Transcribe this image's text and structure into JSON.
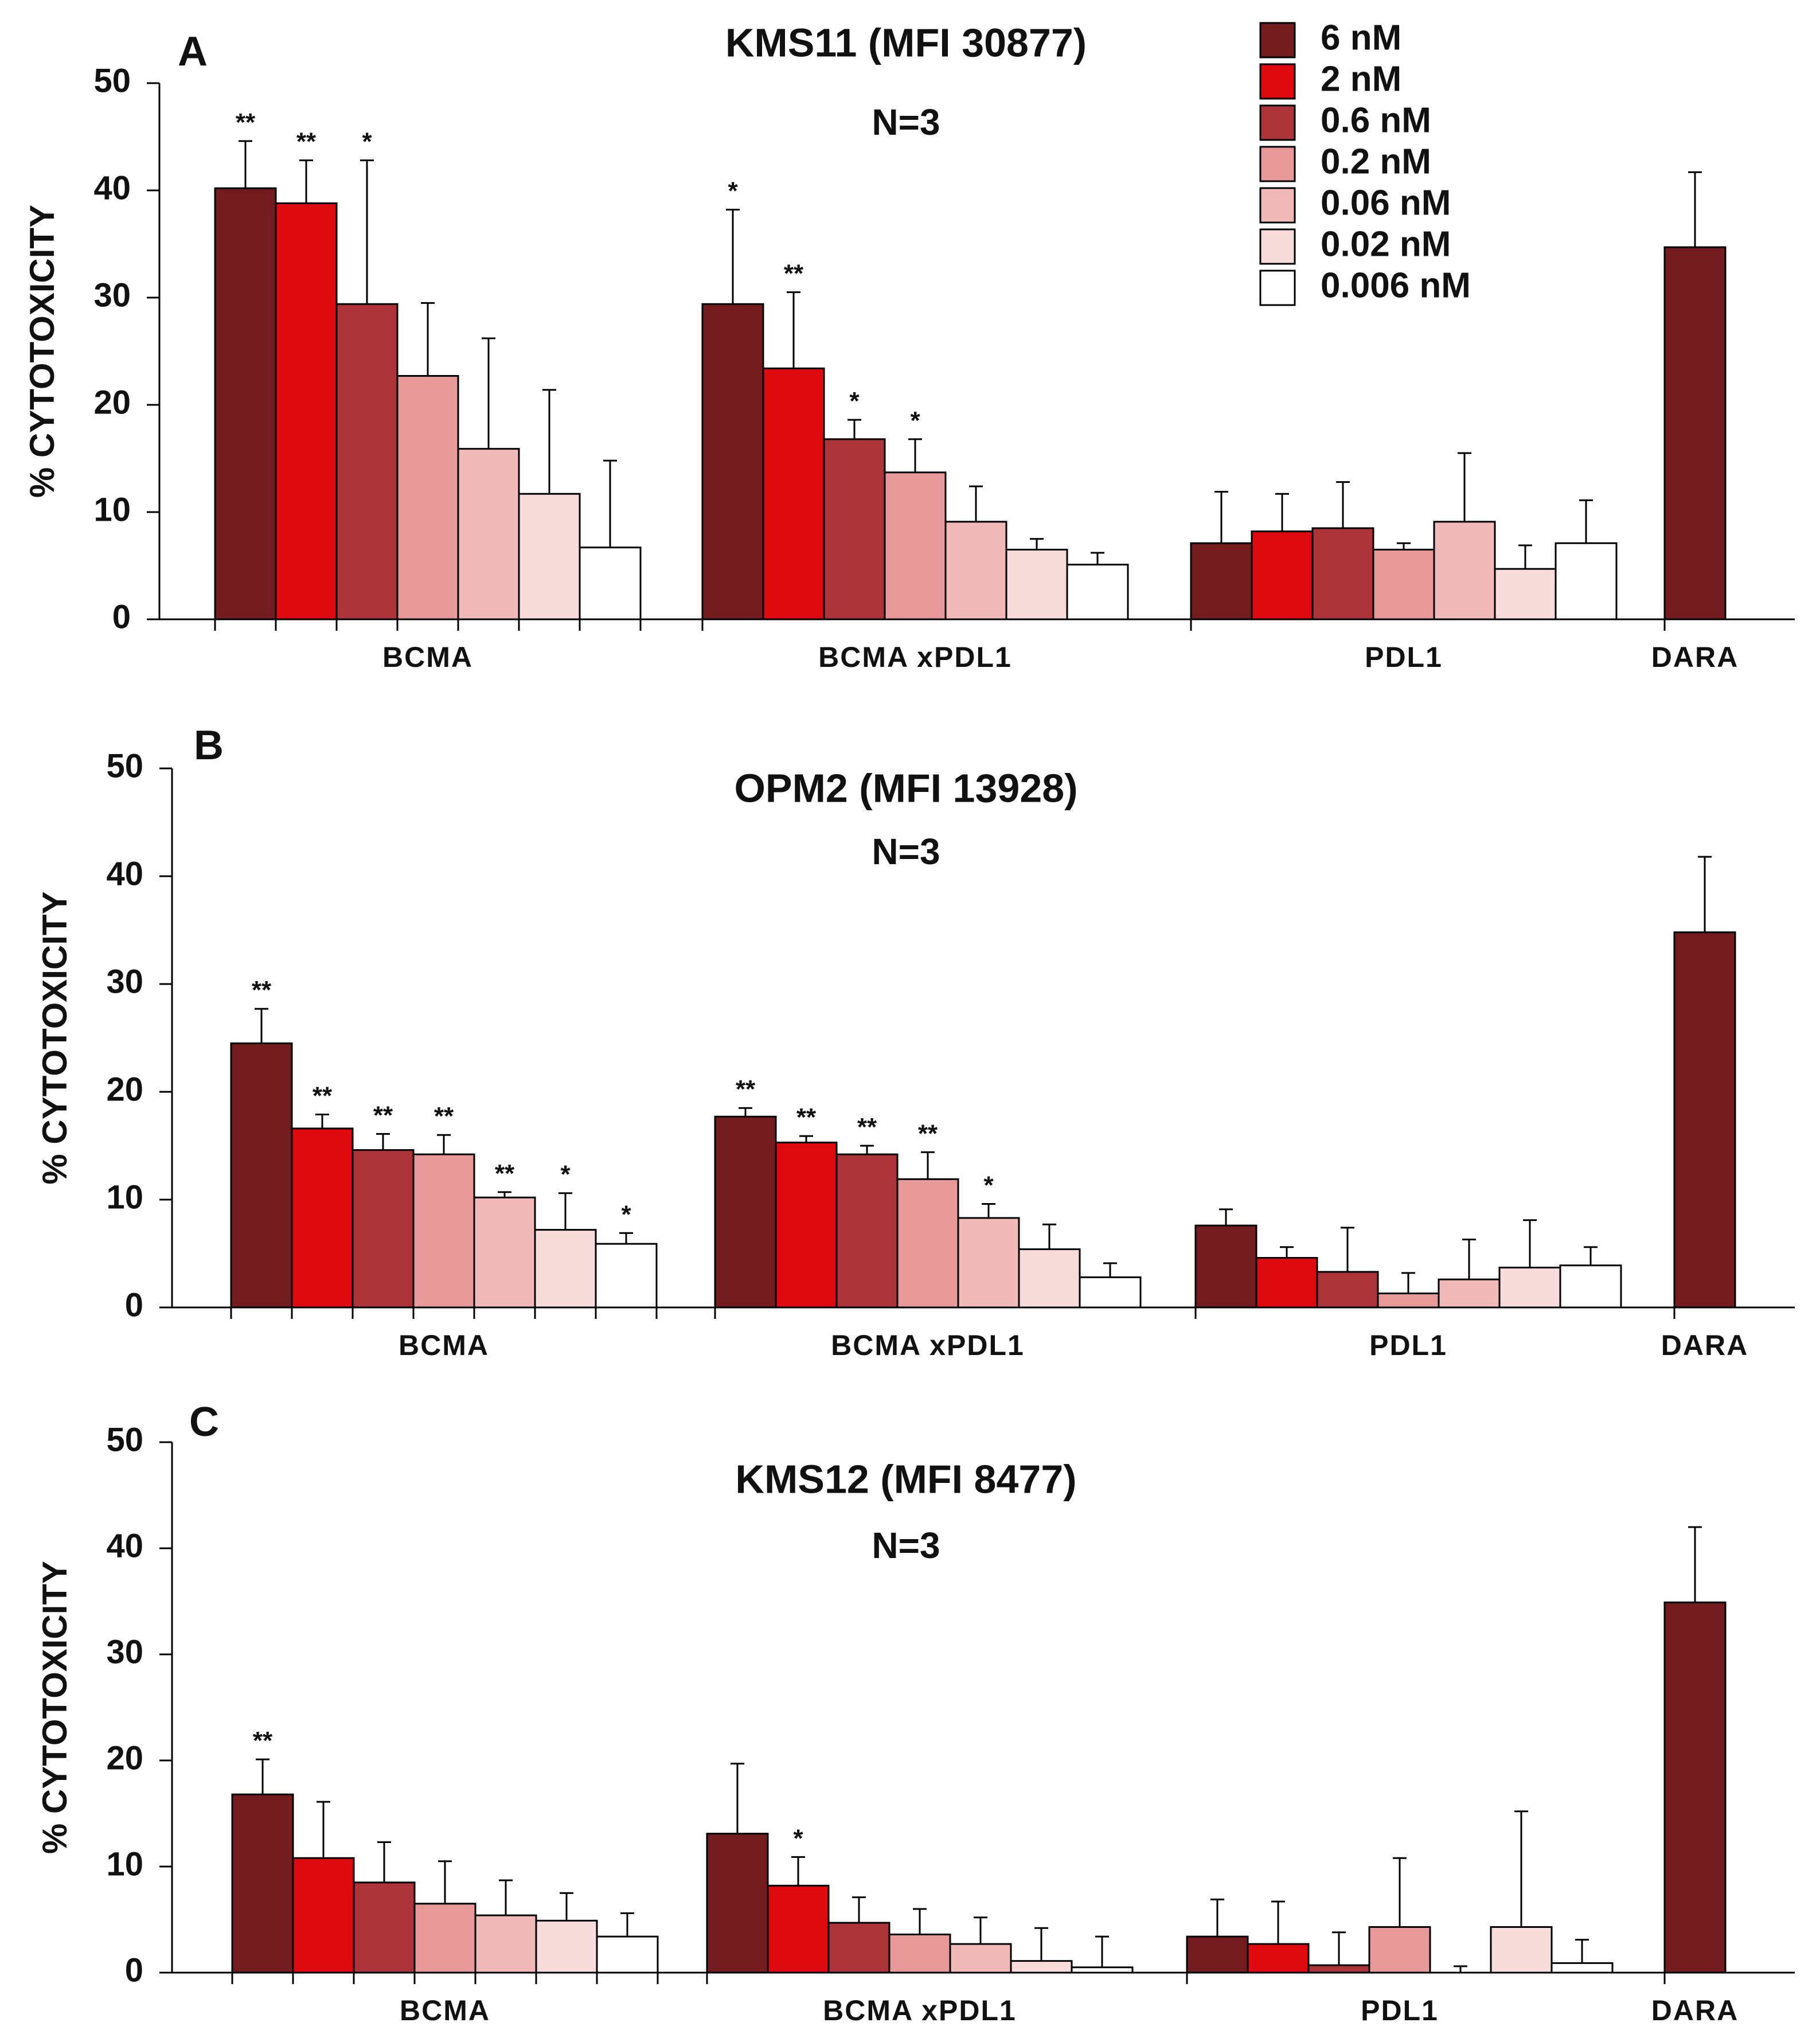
{
  "figure": {
    "legend": {
      "items": [
        {
          "label": "6 nM",
          "color": "#721c1f"
        },
        {
          "label": "2 nM",
          "color": "#df0a10"
        },
        {
          "label": "0.6 nM",
          "color": "#ac3337"
        },
        {
          "label": "0.2 nM",
          "color": "#e89a9b"
        },
        {
          "label": "0.06 nM",
          "color": "#f2b9b9"
        },
        {
          "label": "0.02 nM",
          "color": "#f8dcdc"
        },
        {
          "label": "0.006 nM",
          "color": "#ffffff"
        }
      ]
    }
  },
  "chart_data": [
    {
      "type": "bar",
      "panel": "A",
      "title": "KMS11 (MFI 30877)",
      "subtitle": "N=3",
      "ylabel": "% CYTOTOXICITY",
      "xlabel": "",
      "ylim": [
        0,
        50
      ],
      "yticks": [
        "0",
        "10",
        "20",
        "30",
        "40",
        "50"
      ],
      "categories": [
        "BCMA",
        "BCMA xPDL1",
        "PDL1",
        "DARA"
      ],
      "series": [
        {
          "name": "6 nM",
          "values": [
            40.2,
            29.4,
            7.1,
            34.7
          ],
          "errors": [
            4.4,
            8.8,
            4.8,
            7.0
          ],
          "sig": [
            "**",
            "*",
            "",
            ""
          ]
        },
        {
          "name": "2 nM",
          "values": [
            38.8,
            23.4,
            8.2,
            null
          ],
          "errors": [
            4.0,
            7.1,
            3.5,
            null
          ],
          "sig": [
            "**",
            "**",
            "",
            ""
          ]
        },
        {
          "name": "0.6 nM",
          "values": [
            29.4,
            16.8,
            8.5,
            null
          ],
          "errors": [
            13.4,
            1.8,
            4.3,
            null
          ],
          "sig": [
            "*",
            "*",
            "",
            ""
          ]
        },
        {
          "name": "0.2 nM",
          "values": [
            22.7,
            13.7,
            6.5,
            null
          ],
          "errors": [
            6.8,
            3.1,
            0.6,
            null
          ],
          "sig": [
            "",
            "*",
            "",
            ""
          ]
        },
        {
          "name": "0.06 nM",
          "values": [
            15.9,
            9.1,
            9.1,
            null
          ],
          "errors": [
            10.3,
            3.3,
            6.4,
            null
          ],
          "sig": [
            "",
            "",
            "",
            ""
          ]
        },
        {
          "name": "0.02 nM",
          "values": [
            11.7,
            6.5,
            4.7,
            null
          ],
          "errors": [
            9.7,
            1.0,
            2.2,
            null
          ],
          "sig": [
            "",
            "",
            "",
            ""
          ]
        },
        {
          "name": "0.006 nM",
          "values": [
            6.7,
            5.1,
            7.1,
            null
          ],
          "errors": [
            8.1,
            1.1,
            4.0,
            null
          ],
          "sig": [
            "",
            "",
            "",
            ""
          ]
        }
      ]
    },
    {
      "type": "bar",
      "panel": "B",
      "title": "OPM2 (MFI 13928)",
      "subtitle": "N=3",
      "ylabel": "% CYTOTOXICITY",
      "xlabel": "",
      "ylim": [
        0,
        50
      ],
      "yticks": [
        "0",
        "10",
        "20",
        "30",
        "40",
        "50"
      ],
      "categories": [
        "BCMA",
        "BCMA xPDL1",
        "PDL1",
        "DARA"
      ],
      "series": [
        {
          "name": "6 nM",
          "values": [
            24.5,
            17.7,
            7.6,
            34.8
          ],
          "errors": [
            3.2,
            0.8,
            1.5,
            7.0
          ],
          "sig": [
            "**",
            "**",
            "",
            ""
          ]
        },
        {
          "name": "2 nM",
          "values": [
            16.6,
            15.3,
            4.6,
            null
          ],
          "errors": [
            1.3,
            0.6,
            1.0,
            null
          ],
          "sig": [
            "**",
            "**",
            "",
            ""
          ]
        },
        {
          "name": "0.6 nM",
          "values": [
            14.6,
            14.2,
            3.3,
            null
          ],
          "errors": [
            1.5,
            0.8,
            4.1,
            null
          ],
          "sig": [
            "**",
            "**",
            "",
            ""
          ]
        },
        {
          "name": "0.2 nM",
          "values": [
            14.2,
            11.9,
            1.3,
            null
          ],
          "errors": [
            1.8,
            2.5,
            1.9,
            null
          ],
          "sig": [
            "**",
            "**",
            "",
            ""
          ]
        },
        {
          "name": "0.06 nM",
          "values": [
            10.2,
            8.3,
            2.6,
            null
          ],
          "errors": [
            0.5,
            1.3,
            3.7,
            null
          ],
          "sig": [
            "**",
            "*",
            "",
            ""
          ]
        },
        {
          "name": "0.02 nM",
          "values": [
            7.2,
            5.4,
            3.7,
            null
          ],
          "errors": [
            3.4,
            2.3,
            4.4,
            null
          ],
          "sig": [
            "*",
            "",
            "",
            ""
          ]
        },
        {
          "name": "0.006 nM",
          "values": [
            5.9,
            2.8,
            3.9,
            null
          ],
          "errors": [
            1.0,
            1.3,
            1.7,
            null
          ],
          "sig": [
            "*",
            "",
            "",
            ""
          ]
        }
      ]
    },
    {
      "type": "bar",
      "panel": "C",
      "title": "KMS12 (MFI 8477)",
      "subtitle": "N=3",
      "ylabel": "% CYTOTOXICITY",
      "xlabel": "",
      "ylim": [
        0,
        50
      ],
      "yticks": [
        "0",
        "10",
        "20",
        "30",
        "40",
        "50"
      ],
      "categories": [
        "BCMA",
        "BCMA xPDL1",
        "PDL1",
        "DARA"
      ],
      "series": [
        {
          "name": "6 nM",
          "values": [
            16.8,
            13.1,
            3.4,
            34.9
          ],
          "errors": [
            3.3,
            6.6,
            3.5,
            7.1
          ],
          "sig": [
            "**",
            "",
            "",
            ""
          ]
        },
        {
          "name": "2 nM",
          "values": [
            10.8,
            8.2,
            2.7,
            null
          ],
          "errors": [
            5.3,
            2.7,
            4.0,
            null
          ],
          "sig": [
            "",
            "*",
            "",
            ""
          ]
        },
        {
          "name": "0.6 nM",
          "values": [
            8.5,
            4.7,
            0.7,
            null
          ],
          "errors": [
            3.8,
            2.4,
            3.1,
            null
          ],
          "sig": [
            "",
            "",
            "",
            ""
          ]
        },
        {
          "name": "0.2 nM",
          "values": [
            6.5,
            3.6,
            4.3,
            null
          ],
          "errors": [
            4.0,
            2.4,
            6.5,
            null
          ],
          "sig": [
            "",
            "",
            "",
            ""
          ]
        },
        {
          "name": "0.06 nM",
          "values": [
            5.4,
            2.7,
            0.0,
            null
          ],
          "errors": [
            3.3,
            2.5,
            0.6,
            null
          ],
          "sig": [
            "",
            "",
            "",
            ""
          ]
        },
        {
          "name": "0.02 nM",
          "values": [
            4.9,
            1.1,
            4.3,
            null
          ],
          "errors": [
            2.6,
            3.1,
            10.9,
            null
          ],
          "sig": [
            "",
            "",
            "",
            ""
          ]
        },
        {
          "name": "0.006 nM",
          "values": [
            3.4,
            0.5,
            0.9,
            null
          ],
          "errors": [
            2.2,
            2.9,
            2.2,
            null
          ],
          "sig": [
            "",
            "",
            "",
            ""
          ]
        }
      ]
    }
  ]
}
